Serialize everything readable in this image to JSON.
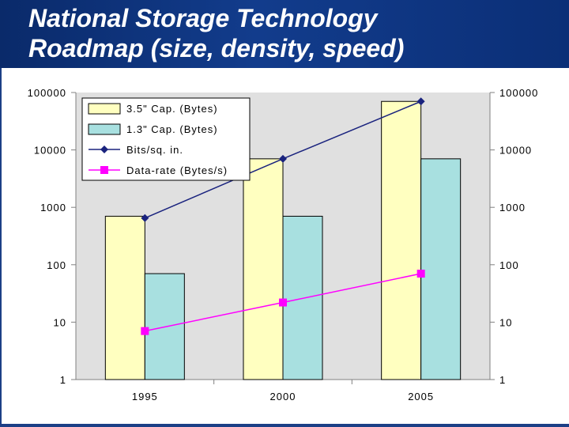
{
  "slide": {
    "title_line1": "National Storage Technology",
    "title_line2": "Roadmap (size, density, speed)"
  },
  "chart_data": {
    "type": "bar",
    "title": "",
    "xlabel": "",
    "ylabel": "",
    "y_scale": "log",
    "ylim": [
      1,
      100000
    ],
    "y_ticks": [
      "100000",
      "10000",
      "1000",
      "100",
      "10",
      "1"
    ],
    "categories": [
      "1995",
      "2000",
      "2005"
    ],
    "grid": false,
    "legend_position": "top-left",
    "series": [
      {
        "name": "3.5\" Cap. (Bytes)",
        "kind": "bar",
        "color": "#ffffc0",
        "values": [
          700,
          7000,
          70000
        ]
      },
      {
        "name": "1.3\" Cap. (Bytes)",
        "kind": "bar",
        "color": "#a8e0e0",
        "values": [
          70,
          700,
          7000
        ]
      },
      {
        "name": "Bits/sq. in.",
        "kind": "line",
        "color": "#1a237e",
        "marker": "diamond",
        "values": [
          650,
          7000,
          70000
        ]
      },
      {
        "name": "Data-rate (Bytes/s)",
        "kind": "line",
        "color": "#ff00ff",
        "marker": "square",
        "values": [
          7,
          22,
          70
        ]
      }
    ]
  },
  "legend": {
    "labels": [
      "3.5\" Cap. (Bytes)",
      "1.3\" Cap. (Bytes)",
      "Bits/sq. in.",
      "Data-rate (Bytes/s)"
    ]
  },
  "colors": {
    "banner": "#123c8c",
    "plot_background": "#e0e0e0"
  }
}
